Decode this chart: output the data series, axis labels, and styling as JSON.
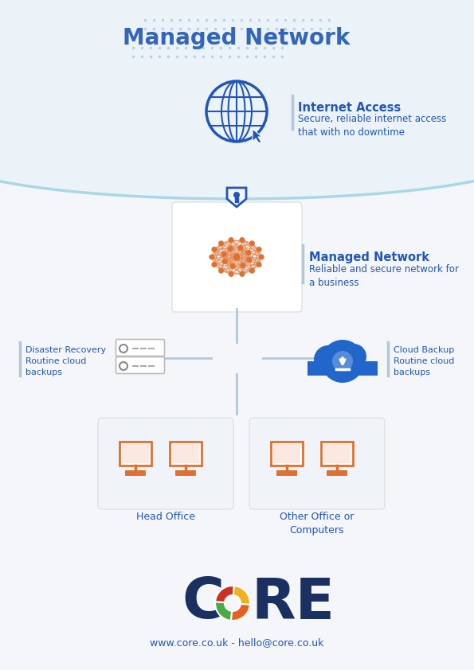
{
  "title": "Managed Network",
  "title_color": "#3366bb",
  "bg_color": "#f4f6f9",
  "dot_color": "#b8d0e8",
  "arc_bg_color": "#e8f2f8",
  "arc_line_color": "#a8d8e8",
  "internet_access_title": "Internet Access",
  "internet_access_desc": "Secure, reliable internet access\nthat with no downtime",
  "managed_network_title": "Managed Network",
  "managed_network_desc": "Reliable and secure network for\na business",
  "disaster_recovery_title": "Disaster Recovery\nRoutine cloud\nbackups",
  "cloud_backup_title": "Cloud Backup\nRoutine cloud\nbackups",
  "head_office_label": "Head Office",
  "other_office_label": "Other Office or\nComputers",
  "icon_blue": "#2255bb",
  "icon_orange": "#e07030",
  "text_blue": "#2255bb",
  "connector_color": "#b0c8d8",
  "box_bg": "#f0f4f8",
  "footer_url": "www.core.co.uk - hello@core.co.uk",
  "core_blue": "#1a3060",
  "core_green": "#4aaa44",
  "core_yellow": "#f0b020",
  "core_red": "#cc3020",
  "core_orange": "#e86020",
  "white": "#ffffff"
}
